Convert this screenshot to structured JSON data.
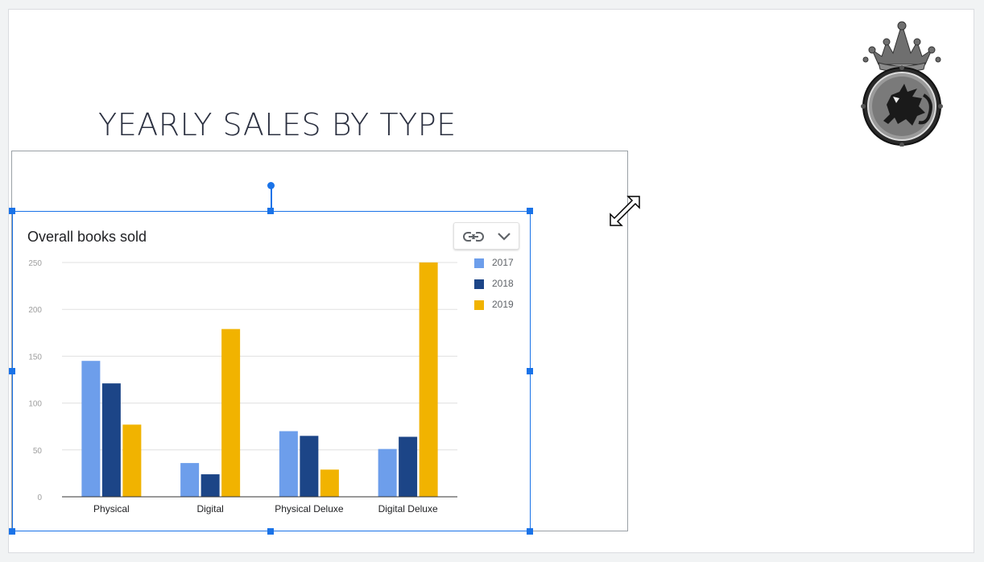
{
  "slide": {
    "title": "YEARLY SALES BY TYPE"
  },
  "logo": {
    "icon": "crowned-griffin-crest-icon"
  },
  "chart_menu": {
    "link_icon": "link-icon",
    "chevron_icon": "chevron-down-icon"
  },
  "cursor": {
    "icon": "diagonal-resize-icon"
  },
  "colors": {
    "selection": "#1a73e8",
    "series_2017": "#6d9eeb",
    "series_2018": "#1c4587",
    "series_2019": "#f1b300"
  },
  "chart_data": {
    "type": "bar",
    "title": "Overall books sold",
    "categories": [
      "Physical",
      "Digital",
      "Physical Deluxe",
      "Digital Deluxe"
    ],
    "series": [
      {
        "name": "2017",
        "color": "#6d9eeb",
        "values": [
          145,
          36,
          70,
          51
        ]
      },
      {
        "name": "2018",
        "color": "#1c4587",
        "values": [
          121,
          24,
          65,
          64
        ]
      },
      {
        "name": "2019",
        "color": "#f1b300",
        "values": [
          77,
          179,
          29,
          250
        ]
      }
    ],
    "yticks": [
      "0",
      "50",
      "100",
      "150",
      "200",
      "250"
    ],
    "ylim": [
      0,
      250
    ],
    "grid": true,
    "legend": "right"
  }
}
